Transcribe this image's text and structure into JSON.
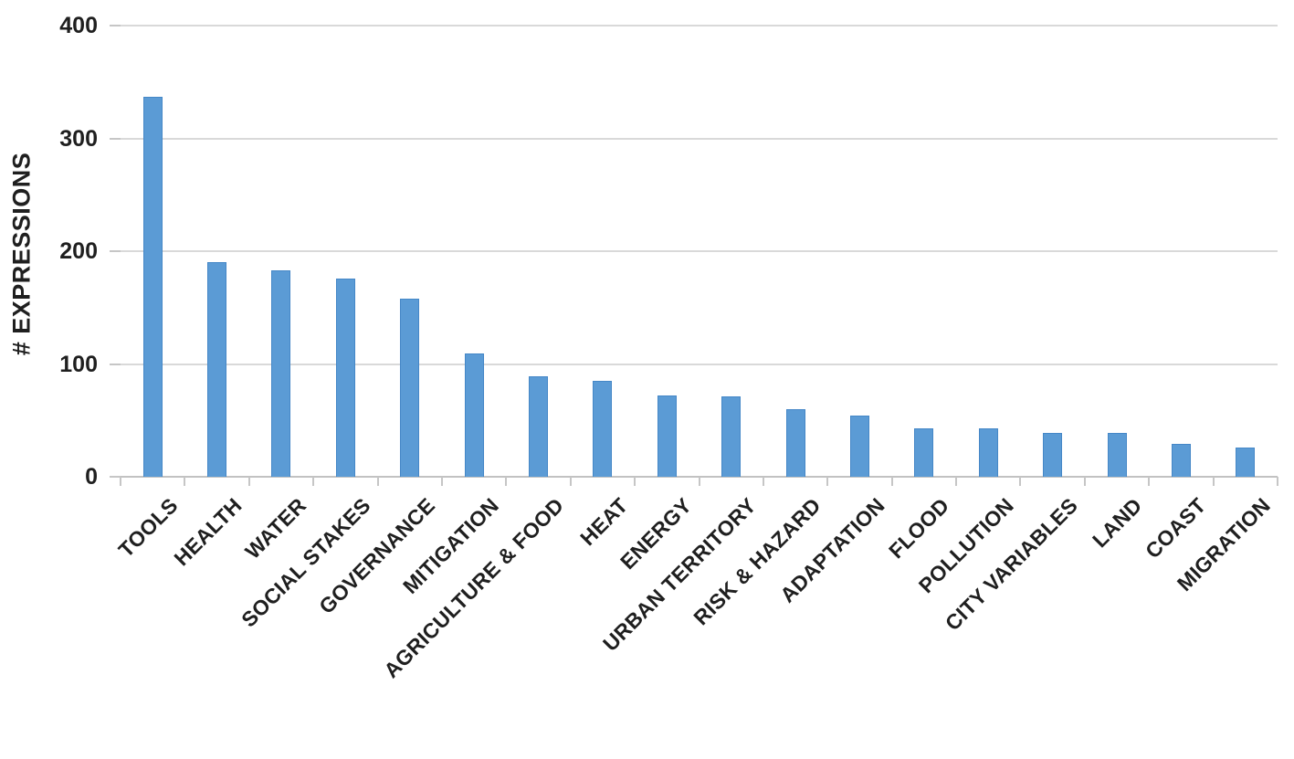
{
  "chart_data": {
    "type": "bar",
    "title": "",
    "categories": [
      "TOOLS",
      "HEALTH",
      "WATER",
      "SOCIAL STAKES",
      "GOVERNANCE",
      "MITIGATION",
      "AGRICULTURE & FOOD",
      "HEAT",
      "ENERGY",
      "URBAN TERRITORY",
      "RISK & HAZARD",
      "ADAPTATION",
      "FLOOD",
      "POLLUTION",
      "CITY VARIABLES",
      "LAND",
      "COAST",
      "MIGRATION"
    ],
    "values": [
      337,
      190,
      183,
      176,
      158,
      109,
      89,
      85,
      72,
      71,
      60,
      54,
      43,
      43,
      39,
      39,
      29,
      26
    ],
    "xlabel": "",
    "ylabel": "# EXPRESSIONS",
    "ylim": [
      0,
      400
    ],
    "yticks": [
      0,
      100,
      200,
      300,
      400
    ],
    "grid": "horizontal",
    "legend": "none",
    "colors": {
      "bar_fill": "#5B9BD5",
      "bar_border": "#4587C7",
      "gridline": "#D9D9D9",
      "axis_line": "#C2C2C2",
      "text": "#1F1F1F",
      "background": "#FFFFFF"
    }
  }
}
